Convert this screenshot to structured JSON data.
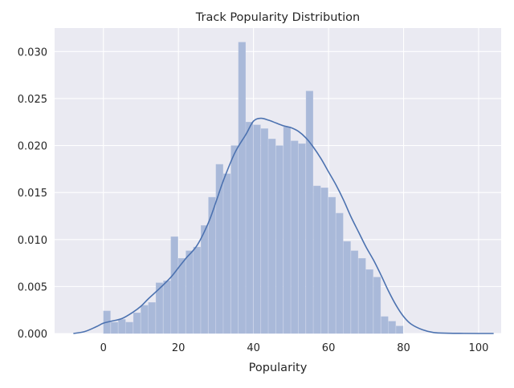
{
  "chart_data": {
    "type": "bar",
    "title": "Track Popularity Distribution",
    "xlabel": "Popularity",
    "ylabel": "",
    "xlim": [
      -13,
      106
    ],
    "ylim": [
      0,
      0.0325
    ],
    "xticks": [
      0,
      20,
      40,
      60,
      80,
      100
    ],
    "yticks": [
      0.0,
      0.005,
      0.01,
      0.015,
      0.02,
      0.025,
      0.03
    ],
    "xtick_labels": [
      "0",
      "20",
      "40",
      "60",
      "80",
      "100"
    ],
    "ytick_labels": [
      "0.000",
      "0.005",
      "0.010",
      "0.015",
      "0.020",
      "0.025",
      "0.030"
    ],
    "grid": true,
    "background_color": "#eaeaf2",
    "grid_color": "#ffffff",
    "bar_color": "#a9b9d9",
    "line_color": "#4c72b0",
    "histogram": {
      "bin_width": 2,
      "bin_starts": [
        0,
        2,
        4,
        6,
        8,
        10,
        12,
        14,
        16,
        18,
        20,
        22,
        24,
        26,
        28,
        30,
        32,
        34,
        36,
        38,
        40,
        42,
        44,
        46,
        48,
        50,
        52,
        54,
        56,
        58,
        60,
        62,
        64,
        66,
        68,
        70,
        72,
        74,
        76,
        78,
        80,
        82
      ],
      "density": [
        0.0024,
        0.0012,
        0.0015,
        0.0012,
        0.0022,
        0.003,
        0.0033,
        0.0054,
        0.0056,
        0.0103,
        0.008,
        0.0088,
        0.0092,
        0.0115,
        0.0145,
        0.018,
        0.017,
        0.02,
        0.031,
        0.0225,
        0.0222,
        0.0218,
        0.0207,
        0.02,
        0.022,
        0.0205,
        0.0202,
        0.0258,
        0.0157,
        0.0155,
        0.0145,
        0.0128,
        0.0098,
        0.0088,
        0.008,
        0.0068,
        0.006,
        0.0018,
        0.0013,
        0.0008,
        0.0,
        0.0
      ]
    },
    "kde": {
      "name": "",
      "x": [
        -8,
        -5,
        -2,
        0,
        2,
        5,
        8,
        10,
        12,
        15,
        18,
        20,
        22,
        25,
        28,
        30,
        32,
        35,
        38,
        40,
        42,
        44,
        46,
        48,
        50,
        52,
        54,
        56,
        58,
        60,
        62,
        64,
        66,
        68,
        70,
        72,
        74,
        76,
        78,
        80,
        82,
        85,
        88,
        92,
        96,
        100,
        104
      ],
      "y": [
        0.0,
        0.0002,
        0.0007,
        0.0011,
        0.0013,
        0.0016,
        0.0023,
        0.0029,
        0.0037,
        0.0048,
        0.006,
        0.007,
        0.008,
        0.0094,
        0.0118,
        0.014,
        0.0163,
        0.0192,
        0.0212,
        0.0226,
        0.0229,
        0.0227,
        0.0224,
        0.0221,
        0.0219,
        0.0215,
        0.0208,
        0.0198,
        0.0186,
        0.0172,
        0.0158,
        0.0142,
        0.0124,
        0.0108,
        0.0092,
        0.0078,
        0.0062,
        0.0045,
        0.003,
        0.0018,
        0.001,
        0.0004,
        0.0001,
        3e-05,
        1e-05,
        0.0,
        0.0
      ]
    }
  }
}
